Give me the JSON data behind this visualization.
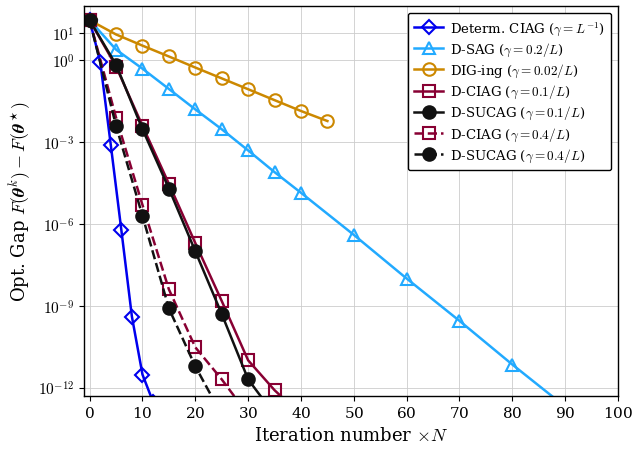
{
  "xlabel": "Iteration number $\\times N$",
  "ylabel": "Opt. Gap $F(\\boldsymbol{\\theta}^k) - F(\\boldsymbol{\\theta}^\\star)$",
  "xlim": [
    -1,
    100
  ],
  "ylim": [
    5e-13,
    100.0
  ],
  "xticks": [
    0,
    10,
    20,
    30,
    40,
    50,
    60,
    70,
    80,
    90,
    100
  ],
  "yticks": [
    10.0,
    1.0,
    0.001,
    1e-06,
    1e-09,
    1e-12
  ],
  "series": [
    {
      "label": "Determ. CIAG ($\\gamma = L^{-1}$)",
      "color": "#0000EE",
      "linestyle": "-",
      "marker": "D",
      "markersize": 7,
      "markerfacecolor": "none",
      "markeredgecolor": "#0000EE",
      "markeredgewidth": 1.5,
      "linewidth": 1.8,
      "x": [
        0,
        2,
        4,
        6,
        8,
        10,
        12
      ],
      "y": [
        30,
        0.9,
        0.0008,
        6e-07,
        4e-10,
        3e-12,
        3e-13
      ]
    },
    {
      "label": "D-SAG ($\\gamma = 0.2/L$)",
      "color": "#22AAFF",
      "linestyle": "-",
      "marker": "^",
      "markersize": 9,
      "markerfacecolor": "none",
      "markeredgecolor": "#22AAFF",
      "markeredgewidth": 1.5,
      "linewidth": 1.8,
      "x": [
        0,
        5,
        10,
        15,
        20,
        25,
        30,
        35,
        40,
        50,
        60,
        70,
        80,
        90,
        97
      ],
      "y": [
        30,
        2.5,
        0.5,
        0.09,
        0.016,
        0.003,
        0.0005,
        8e-05,
        1.4e-05,
        4e-07,
        1e-08,
        2.8e-10,
        7e-12,
        2e-13,
        5e-14
      ]
    },
    {
      "label": "DIG-ing ($\\gamma = 0.02/L$)",
      "color": "#CC8800",
      "linestyle": "-",
      "marker": "o",
      "markersize": 9,
      "markerfacecolor": "none",
      "markeredgecolor": "#CC8800",
      "markeredgewidth": 1.5,
      "linewidth": 1.8,
      "x": [
        0,
        5,
        10,
        15,
        20,
        25,
        30,
        35,
        40,
        45
      ],
      "y": [
        30,
        9,
        3.5,
        1.4,
        0.55,
        0.22,
        0.088,
        0.035,
        0.014,
        0.006
      ]
    },
    {
      "label": "D-CIAG ($\\gamma = 0.1/L$)",
      "color": "#880033",
      "linestyle": "-",
      "marker": "s",
      "markersize": 8,
      "markerfacecolor": "none",
      "markeredgecolor": "#880033",
      "markeredgewidth": 1.5,
      "linewidth": 1.8,
      "x": [
        0,
        5,
        10,
        15,
        20,
        25,
        30,
        35,
        40
      ],
      "y": [
        30,
        0.6,
        0.004,
        3e-05,
        2e-07,
        1.5e-09,
        1e-11,
        8e-13,
        1e-13
      ]
    },
    {
      "label": "D-SUCAG ($\\gamma = 0.1/L$)",
      "color": "#111111",
      "linestyle": "-",
      "marker": "o",
      "markersize": 9,
      "markerfacecolor": "#111111",
      "markeredgecolor": "#111111",
      "markeredgewidth": 1.5,
      "linewidth": 1.8,
      "x": [
        0,
        5,
        10,
        15,
        20,
        25,
        30,
        35,
        40
      ],
      "y": [
        30,
        0.7,
        0.003,
        2e-05,
        1e-07,
        5e-10,
        2e-12,
        1e-13,
        1e-13
      ]
    },
    {
      "label": "D-CIAG ($\\gamma = 0.4/L$)",
      "color": "#880033",
      "linestyle": "--",
      "marker": "s",
      "markersize": 8,
      "markerfacecolor": "none",
      "markeredgecolor": "#880033",
      "markeredgewidth": 1.5,
      "linewidth": 1.8,
      "x": [
        0,
        5,
        10,
        15,
        20,
        25,
        30
      ],
      "y": [
        30,
        0.008,
        5e-06,
        4e-09,
        3e-11,
        2e-12,
        1e-13
      ]
    },
    {
      "label": "D-SUCAG ($\\gamma = 0.4/L$)",
      "color": "#111111",
      "linestyle": "--",
      "marker": "o",
      "markersize": 9,
      "markerfacecolor": "#111111",
      "markeredgecolor": "#111111",
      "markeredgewidth": 1.5,
      "linewidth": 1.8,
      "x": [
        0,
        5,
        10,
        15,
        20,
        25
      ],
      "y": [
        30,
        0.004,
        2e-06,
        8e-10,
        6e-12,
        1e-13
      ]
    }
  ],
  "legend_loc": "upper right",
  "legend_fontsize": 9.5,
  "axis_fontsize": 13,
  "tick_fontsize": 11,
  "grid_color": "#cccccc",
  "grid_linewidth": 0.6
}
